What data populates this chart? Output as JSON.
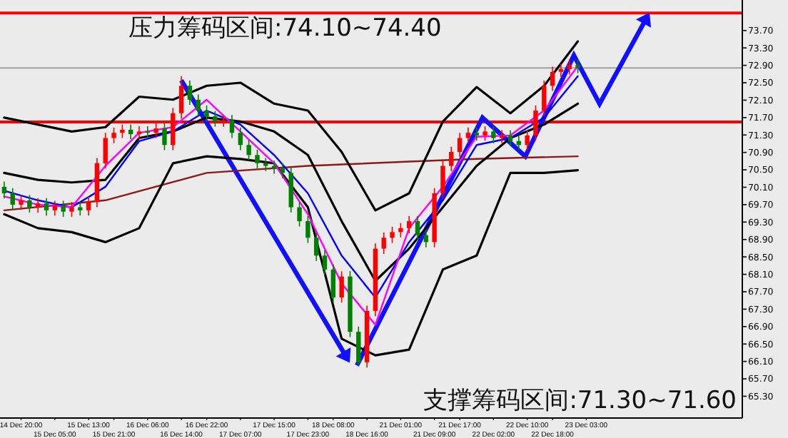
{
  "chart_data": {
    "type": "candlestick",
    "categories": [
      null,
      null,
      "14 Dec 20:00",
      null,
      null,
      null,
      "15 Dec 05:00",
      null,
      null,
      null,
      "15 Dec 13:00",
      null,
      null,
      "15 Dec 21:00",
      null,
      null,
      null,
      "16 Dec 06:00",
      null,
      null,
      null,
      "16 Dec 14:00",
      null,
      null,
      "16 Dec 22:00",
      null,
      null,
      null,
      "17 Dec 07:00",
      null,
      null,
      null,
      "17 Dec 15:00",
      null,
      null,
      null,
      "17 Dec 23:00",
      null,
      null,
      "18 Dec 08:00",
      null,
      null,
      null,
      "18 Dec 16:00",
      null,
      null,
      null,
      "21 Dec 01:00",
      null,
      null,
      null,
      "21 Dec 09:00",
      null,
      null,
      "21 Dec 17:00",
      null,
      null,
      null,
      "22 Dec 02:00",
      null,
      null,
      null,
      "22 Dec 10:00",
      null,
      null,
      "22 Dec 18:00",
      null,
      null,
      null,
      "23 Dec 03:00",
      null,
      null,
      null,
      null,
      null,
      null,
      null,
      null,
      null,
      null,
      null,
      null,
      null,
      null,
      null,
      null,
      null,
      null
    ],
    "ohlc": [
      [
        70.11,
        70.23,
        69.84,
        69.96
      ],
      [
        69.96,
        70.08,
        69.58,
        69.7
      ],
      [
        69.7,
        69.92,
        69.58,
        69.8
      ],
      [
        69.8,
        69.92,
        69.52,
        69.64
      ],
      [
        69.64,
        69.85,
        69.52,
        69.73
      ],
      [
        69.73,
        69.85,
        69.45,
        69.57
      ],
      [
        69.57,
        69.79,
        69.45,
        69.67
      ],
      [
        69.67,
        69.79,
        69.42,
        69.54
      ],
      [
        69.54,
        69.76,
        69.42,
        69.64
      ],
      [
        69.64,
        69.76,
        69.45,
        69.57
      ],
      [
        69.57,
        69.88,
        69.45,
        69.76
      ],
      [
        69.76,
        70.77,
        69.64,
        70.65
      ],
      [
        70.65,
        71.35,
        70.53,
        71.23
      ],
      [
        71.23,
        71.47,
        71.11,
        71.35
      ],
      [
        71.35,
        71.54,
        71.23,
        71.42
      ],
      [
        71.42,
        71.54,
        71.2,
        71.32
      ],
      [
        71.32,
        71.5,
        71.2,
        71.38
      ],
      [
        71.38,
        71.5,
        71.23,
        71.35
      ],
      [
        71.35,
        71.57,
        71.23,
        71.45
      ],
      [
        71.45,
        71.57,
        70.95,
        71.07
      ],
      [
        71.07,
        71.92,
        70.95,
        71.8
      ],
      [
        71.8,
        72.65,
        71.68,
        72.43
      ],
      [
        72.43,
        72.55,
        71.99,
        72.11
      ],
      [
        72.11,
        72.23,
        71.74,
        71.86
      ],
      [
        71.86,
        71.98,
        71.61,
        71.73
      ],
      [
        71.73,
        71.85,
        71.49,
        71.61
      ],
      [
        71.61,
        71.76,
        71.49,
        71.64
      ],
      [
        71.64,
        71.76,
        71.23,
        71.35
      ],
      [
        71.35,
        71.47,
        70.95,
        71.07
      ],
      [
        71.07,
        71.19,
        70.72,
        70.84
      ],
      [
        70.84,
        70.96,
        70.53,
        70.65
      ],
      [
        70.65,
        70.77,
        70.47,
        70.59
      ],
      [
        70.59,
        70.71,
        70.41,
        70.53
      ],
      [
        70.53,
        70.65,
        70.31,
        70.43
      ],
      [
        70.43,
        70.55,
        69.52,
        69.64
      ],
      [
        69.64,
        69.76,
        69.2,
        69.32
      ],
      [
        69.32,
        69.44,
        68.82,
        68.94
      ],
      [
        68.94,
        69.06,
        68.41,
        68.53
      ],
      [
        68.53,
        68.65,
        68.09,
        68.21
      ],
      [
        68.21,
        68.33,
        67.45,
        67.57
      ],
      [
        67.57,
        68.17,
        67.45,
        68.05
      ],
      [
        68.05,
        68.17,
        66.66,
        66.78
      ],
      [
        66.78,
        66.9,
        65.99,
        66.08
      ],
      [
        66.08,
        67.38,
        65.96,
        67.26
      ],
      [
        67.26,
        68.81,
        67.14,
        68.69
      ],
      [
        68.69,
        69.06,
        68.57,
        68.94
      ],
      [
        68.94,
        69.19,
        68.82,
        69.07
      ],
      [
        69.07,
        69.28,
        68.95,
        69.16
      ],
      [
        69.16,
        69.44,
        69.04,
        69.32
      ],
      [
        69.32,
        69.44,
        68.88,
        69.0
      ],
      [
        69.0,
        69.12,
        68.72,
        68.84
      ],
      [
        68.84,
        70.08,
        68.72,
        69.96
      ],
      [
        69.96,
        70.71,
        69.84,
        70.59
      ],
      [
        70.59,
        71.03,
        70.47,
        70.91
      ],
      [
        70.91,
        71.35,
        70.79,
        71.23
      ],
      [
        71.23,
        71.47,
        71.11,
        71.35
      ],
      [
        71.35,
        71.47,
        71.17,
        71.29
      ],
      [
        71.29,
        71.5,
        71.17,
        71.38
      ],
      [
        71.38,
        71.5,
        71.11,
        71.23
      ],
      [
        71.23,
        71.41,
        71.11,
        71.29
      ],
      [
        71.29,
        71.41,
        71.04,
        71.16
      ],
      [
        71.16,
        71.28,
        70.95,
        71.07
      ],
      [
        71.07,
        71.41,
        70.95,
        71.29
      ],
      [
        71.29,
        71.98,
        71.17,
        71.86
      ],
      [
        71.86,
        72.55,
        71.74,
        72.43
      ],
      [
        72.43,
        72.87,
        72.31,
        72.75
      ],
      [
        72.75,
        72.93,
        72.63,
        72.81
      ],
      [
        72.81,
        73.03,
        72.69,
        72.91
      ],
      [
        72.91,
        73.03,
        72.72,
        72.84
      ],
      null,
      null,
      null,
      null,
      null,
      null,
      null,
      null,
      null,
      null,
      null,
      null,
      null,
      null,
      null,
      null,
      null,
      null,
      null
    ],
    "series": [
      {
        "type": "line",
        "color": "#8b1a1a",
        "values": [
          69.57,
          null,
          null,
          null,
          null,
          null,
          null,
          null,
          null,
          null,
          null,
          null,
          69.8,
          null,
          null,
          null,
          null,
          null,
          null,
          null,
          null,
          null,
          null,
          null,
          70.43,
          null,
          null,
          null,
          null,
          null,
          null,
          null,
          null,
          null,
          null,
          null,
          70.59,
          null,
          null,
          null,
          null,
          null,
          null,
          null,
          null,
          null,
          null,
          null,
          70.69,
          null,
          null,
          null,
          null,
          null,
          null,
          null,
          70.75,
          null,
          null,
          null,
          null,
          null,
          null,
          null,
          null,
          null,
          null,
          null,
          70.81,
          null,
          null,
          null,
          null,
          null,
          null,
          null,
          null,
          null,
          null,
          null,
          null,
          null,
          null,
          null,
          null,
          null,
          null,
          null
        ]
      },
      {
        "type": "line",
        "color": "#000000",
        "values": [
          71.7,
          null,
          null,
          null,
          71.54,
          null,
          null,
          null,
          71.38,
          null,
          null,
          null,
          71.48,
          null,
          null,
          null,
          72.18,
          null,
          null,
          null,
          72.11,
          null,
          null,
          null,
          72.43,
          null,
          null,
          null,
          72.5,
          null,
          null,
          null,
          72.02,
          null,
          null,
          null,
          71.86,
          null,
          null,
          null,
          70.91,
          null,
          null,
          null,
          69.57,
          null,
          null,
          null,
          69.96,
          null,
          null,
          null,
          71.61,
          null,
          null,
          null,
          72.4,
          null,
          null,
          null,
          71.8,
          null,
          null,
          null,
          72.43,
          null,
          null,
          null,
          73.45,
          null,
          null,
          null,
          null,
          null,
          null,
          null,
          null,
          null,
          null,
          null,
          null,
          null,
          null,
          null,
          null,
          null,
          null,
          null
        ]
      },
      {
        "type": "line",
        "color": "#000000",
        "values": [
          70.43,
          null,
          null,
          null,
          70.27,
          null,
          null,
          null,
          70.21,
          null,
          null,
          null,
          70.27,
          null,
          null,
          null,
          71.23,
          null,
          null,
          null,
          71.38,
          null,
          null,
          null,
          71.7,
          null,
          null,
          null,
          71.61,
          null,
          null,
          null,
          71.38,
          null,
          null,
          null,
          70.84,
          null,
          null,
          null,
          69.32,
          null,
          null,
          null,
          67.95,
          null,
          null,
          null,
          68.69,
          null,
          null,
          null,
          69.64,
          null,
          null,
          null,
          70.59,
          null,
          null,
          null,
          71.23,
          null,
          null,
          null,
          71.54,
          null,
          null,
          null,
          72.02,
          null,
          null,
          null,
          null,
          null,
          null,
          null,
          null,
          null,
          null,
          null,
          null,
          null,
          null,
          null,
          null,
          null,
          null,
          null
        ]
      },
      {
        "type": "line",
        "color": "#000000",
        "values": [
          69.48,
          null,
          null,
          null,
          69.16,
          null,
          null,
          null,
          69.07,
          null,
          null,
          null,
          68.84,
          null,
          null,
          null,
          69.16,
          null,
          null,
          null,
          70.65,
          null,
          null,
          null,
          70.81,
          null,
          null,
          null,
          70.75,
          null,
          null,
          null,
          70.65,
          null,
          null,
          null,
          69.64,
          null,
          null,
          null,
          66.62,
          null,
          null,
          null,
          66.24,
          null,
          null,
          null,
          66.37,
          null,
          null,
          null,
          68.21,
          null,
          null,
          null,
          68.53,
          null,
          null,
          null,
          70.43,
          null,
          null,
          null,
          70.43,
          null,
          null,
          null,
          70.49,
          null,
          null,
          null,
          null,
          null,
          null,
          null,
          null,
          null,
          null,
          null,
          null,
          null,
          null,
          null,
          null,
          null,
          null,
          null
        ]
      },
      {
        "type": "line",
        "color": "#0000ff",
        "values": [
          70.02,
          null,
          null,
          null,
          69.8,
          null,
          null,
          null,
          69.64,
          null,
          null,
          null,
          70.11,
          null,
          null,
          null,
          71.16,
          null,
          null,
          null,
          71.38,
          null,
          null,
          null,
          71.86,
          null,
          null,
          null,
          71.54,
          null,
          null,
          null,
          70.84,
          null,
          null,
          null,
          69.96,
          null,
          null,
          null,
          68.53,
          null,
          null,
          null,
          67.57,
          null,
          null,
          null,
          68.84,
          null,
          null,
          null,
          69.8,
          null,
          null,
          null,
          71.07,
          null,
          null,
          null,
          71.23,
          null,
          null,
          null,
          71.7,
          null,
          null,
          null,
          72.65,
          null,
          null,
          null,
          null,
          null,
          null,
          null,
          null,
          null,
          null,
          null,
          null,
          null,
          null,
          null,
          null,
          null,
          null,
          null
        ]
      },
      {
        "type": "line",
        "color": "#ff00ff",
        "values": [
          69.89,
          null,
          null,
          null,
          69.7,
          null,
          null,
          null,
          69.64,
          null,
          null,
          null,
          70.59,
          null,
          null,
          null,
          71.35,
          null,
          null,
          null,
          71.48,
          null,
          null,
          null,
          72.11,
          null,
          null,
          null,
          71.38,
          null,
          null,
          null,
          70.65,
          null,
          null,
          null,
          69.48,
          null,
          null,
          null,
          67.89,
          null,
          null,
          null,
          66.94,
          null,
          null,
          null,
          69.16,
          null,
          null,
          null,
          70.11,
          null,
          null,
          null,
          71.26,
          null,
          null,
          null,
          71.29,
          null,
          null,
          null,
          71.86,
          null,
          null,
          null,
          72.88,
          null,
          null,
          null,
          null,
          null,
          null,
          null,
          null,
          null,
          null,
          null,
          null,
          null,
          null,
          null,
          null,
          null,
          null,
          null
        ]
      }
    ],
    "ylim": [
      64.8,
      74.4
    ],
    "yticks": [
      {
        "value": 73.7,
        "label": "73.70"
      },
      {
        "value": 73.3,
        "label": "73.30"
      },
      {
        "value": 72.9,
        "label": "72.90"
      },
      {
        "value": 72.5,
        "label": "72.50"
      },
      {
        "value": 72.1,
        "label": "72.10"
      },
      {
        "value": 71.7,
        "label": "71.70"
      },
      {
        "value": 71.3,
        "label": "71.30"
      },
      {
        "value": 70.9,
        "label": "70.90"
      },
      {
        "value": 70.5,
        "label": "70.50"
      },
      {
        "value": 70.1,
        "label": "70.10"
      },
      {
        "value": 69.7,
        "label": "69.70"
      },
      {
        "value": 69.3,
        "label": "69.30"
      },
      {
        "value": 68.9,
        "label": "68.90"
      },
      {
        "value": 68.5,
        "label": "68.50"
      },
      {
        "value": 68.1,
        "label": "68.10"
      },
      {
        "value": 67.7,
        "label": "67.70"
      },
      {
        "value": 67.3,
        "label": "67.30"
      },
      {
        "value": 66.9,
        "label": "66.90"
      },
      {
        "value": 66.5,
        "label": "66.50"
      },
      {
        "value": 66.1,
        "label": "66.10"
      },
      {
        "value": 65.7,
        "label": "65.70"
      },
      {
        "value": 65.3,
        "label": "65.30"
      }
    ],
    "ref_lines": [
      {
        "axis": "y",
        "value": 74.1,
        "color": "#ff0000"
      },
      {
        "axis": "y",
        "value": 71.6,
        "color": "#ff0000"
      },
      {
        "axis": "y",
        "value": 72.84,
        "color": "#a0a0a0"
      }
    ],
    "annotations": [
      "压力筹码区间:74.10~74.40",
      "支撑筹码区间:71.30~71.60"
    ]
  }
}
